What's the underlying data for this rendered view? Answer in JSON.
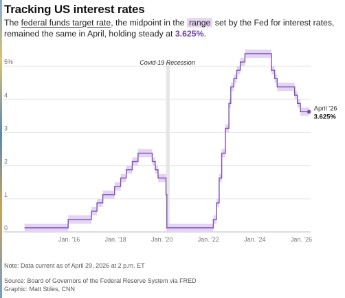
{
  "header": {
    "title": "Tracking US interest rates",
    "subtitle_p1": "The ",
    "subtitle_link": "federal funds target rate",
    "subtitle_p2": ", the midpoint in the ",
    "subtitle_range": "range",
    "subtitle_p3": " set by the Fed for interest rates, remained the same in April, holding steady at ",
    "subtitle_value": "3.625%",
    "subtitle_p4": "."
  },
  "footer": {
    "note": "Note: Data current as of April 29, 2026 at 2 p.m. ET",
    "source": "Source: Board of Governors of the Federal Reserve System via FRED",
    "credit": "Graphic: Matt Stiles, CNN"
  },
  "chart_data": {
    "type": "line",
    "step": true,
    "title": "Tracking US interest rates",
    "xlabel": "",
    "ylabel": "",
    "xlim": [
      2014.0,
      2026.4
    ],
    "ylim": [
      0,
      5.5
    ],
    "y_ticks": [
      {
        "value": 0,
        "label": "0"
      },
      {
        "value": 1,
        "label": "1"
      },
      {
        "value": 2,
        "label": "2"
      },
      {
        "value": 3,
        "label": "3"
      },
      {
        "value": 4,
        "label": "4"
      },
      {
        "value": 5,
        "label": "5%"
      }
    ],
    "x_ticks": [
      {
        "value": 2016,
        "label": "Jan. '16"
      },
      {
        "value": 2018,
        "label": "Jan. '18"
      },
      {
        "value": 2020,
        "label": "Jan. '20"
      },
      {
        "value": 2022,
        "label": "Jan. '22"
      },
      {
        "value": 2024,
        "label": "Jan. '24"
      },
      {
        "value": 2026,
        "label": "Jan. '26"
      }
    ],
    "grid": true,
    "colors": {
      "line": "#7b4fb0",
      "band": "#e4d4f3",
      "recession": "#e6e6e6",
      "grid": "#e8e8e8",
      "baseline": "#bbbbbb"
    },
    "recession": {
      "start": 2020.17,
      "end": 2020.33,
      "label": "Covid-19 Recession"
    },
    "series": [
      {
        "points": [
          [
            2014.08,
            0.125
          ],
          [
            2015.96,
            0.375
          ],
          [
            2016.96,
            0.625
          ],
          [
            2017.2,
            0.875
          ],
          [
            2017.45,
            1.125
          ],
          [
            2017.96,
            1.375
          ],
          [
            2018.22,
            1.625
          ],
          [
            2018.46,
            1.875
          ],
          [
            2018.72,
            2.125
          ],
          [
            2018.97,
            2.375
          ],
          [
            2019.58,
            2.125
          ],
          [
            2019.71,
            1.875
          ],
          [
            2019.83,
            1.625
          ],
          [
            2020.17,
            1.125
          ],
          [
            2020.21,
            0.125
          ],
          [
            2022.21,
            0.375
          ],
          [
            2022.35,
            0.875
          ],
          [
            2022.46,
            1.625
          ],
          [
            2022.57,
            2.375
          ],
          [
            2022.73,
            3.125
          ],
          [
            2022.88,
            3.875
          ],
          [
            2022.96,
            4.375
          ],
          [
            2023.09,
            4.625
          ],
          [
            2023.22,
            4.875
          ],
          [
            2023.37,
            5.125
          ],
          [
            2023.57,
            5.375
          ],
          [
            2024.71,
            4.875
          ],
          [
            2024.85,
            4.625
          ],
          [
            2024.96,
            4.375
          ],
          [
            2025.71,
            4.125
          ],
          [
            2025.83,
            3.875
          ],
          [
            2025.96,
            3.625
          ],
          [
            2026.33,
            3.625
          ]
        ],
        "range_halfwidth": 0.125
      }
    ],
    "end_label": {
      "date": "April '26",
      "value": "3.625%"
    }
  }
}
